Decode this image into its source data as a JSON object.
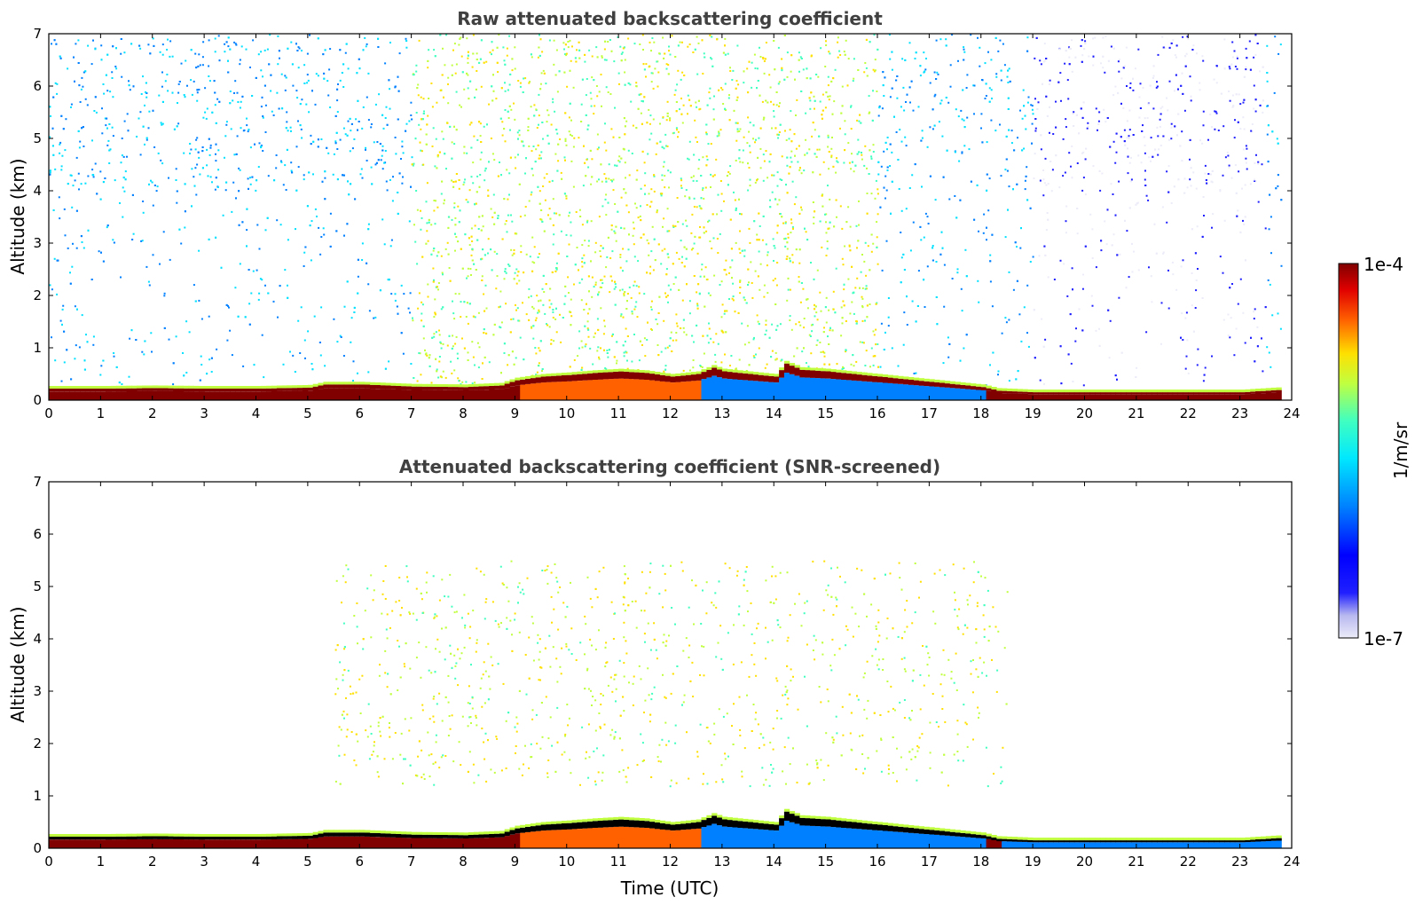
{
  "chart_data": [
    {
      "type": "heatmap",
      "title": "Raw attenuated backscattering coefficient",
      "xlabel": "",
      "ylabel": "Altitude (km)",
      "xlim": [
        0,
        24
      ],
      "ylim": [
        0,
        7
      ],
      "xticks": [
        0,
        1,
        2,
        3,
        4,
        5,
        6,
        7,
        8,
        9,
        10,
        11,
        12,
        13,
        14,
        15,
        16,
        17,
        18,
        19,
        20,
        21,
        22,
        23,
        24
      ],
      "yticks": [
        0,
        1,
        2,
        3,
        4,
        5,
        6,
        7
      ],
      "boundary_layer_top_km": [
        [
          0,
          0.22
        ],
        [
          1,
          0.22
        ],
        [
          2,
          0.23
        ],
        [
          3,
          0.22
        ],
        [
          4,
          0.22
        ],
        [
          5,
          0.24
        ],
        [
          5.3,
          0.3
        ],
        [
          6,
          0.3
        ],
        [
          7,
          0.26
        ],
        [
          8,
          0.25
        ],
        [
          8.7,
          0.28
        ],
        [
          9,
          0.38
        ],
        [
          9.5,
          0.45
        ],
        [
          10,
          0.48
        ],
        [
          10.5,
          0.52
        ],
        [
          11,
          0.55
        ],
        [
          11.5,
          0.52
        ],
        [
          12,
          0.45
        ],
        [
          12.5,
          0.5
        ],
        [
          12.8,
          0.62
        ],
        [
          13,
          0.55
        ],
        [
          13.5,
          0.5
        ],
        [
          14,
          0.45
        ],
        [
          14.2,
          0.7
        ],
        [
          14.5,
          0.58
        ],
        [
          15,
          0.55
        ],
        [
          16,
          0.45
        ],
        [
          17,
          0.35
        ],
        [
          17.5,
          0.3
        ],
        [
          18,
          0.25
        ],
        [
          18.3,
          0.18
        ],
        [
          19,
          0.15
        ],
        [
          20,
          0.15
        ],
        [
          21,
          0.15
        ],
        [
          22,
          0.15
        ],
        [
          23,
          0.15
        ],
        [
          23.8,
          0.2
        ]
      ],
      "aerosol_layer": {
        "x_range_utc": [
          7,
          16
        ],
        "altitude_range_km": [
          0.5,
          7
        ],
        "peak_level": "yellow-green"
      },
      "grid": false
    },
    {
      "type": "heatmap",
      "title": "Attenuated backscattering coefficient (SNR-screened)",
      "xlabel": "Time (UTC)",
      "ylabel": "Altitude (km)",
      "xlim": [
        0,
        24
      ],
      "ylim": [
        0,
        7
      ],
      "xticks": [
        0,
        1,
        2,
        3,
        4,
        5,
        6,
        7,
        8,
        9,
        10,
        11,
        12,
        13,
        14,
        15,
        16,
        17,
        18,
        19,
        20,
        21,
        22,
        23,
        24
      ],
      "yticks": [
        0,
        1,
        2,
        3,
        4,
        5,
        6,
        7
      ],
      "aerosol_layer": {
        "x_range_utc": [
          5.5,
          18.5
        ],
        "altitude_range_km": [
          1.2,
          5.5
        ],
        "peak_level": "yellow"
      },
      "grid": false
    }
  ],
  "colorbar": {
    "label": "1/m/sr",
    "max_label": "1e-4",
    "min_label": "1e-7",
    "colormap": "jet",
    "scale": "log"
  },
  "colors": {
    "title": "#404040",
    "jet_stops": [
      "#ececf9",
      "#b8b8f0",
      "#0000ff",
      "#0080ff",
      "#00e0ff",
      "#40ffc0",
      "#c0ff40",
      "#ffe000",
      "#ff6000",
      "#e00000",
      "#800000"
    ]
  }
}
